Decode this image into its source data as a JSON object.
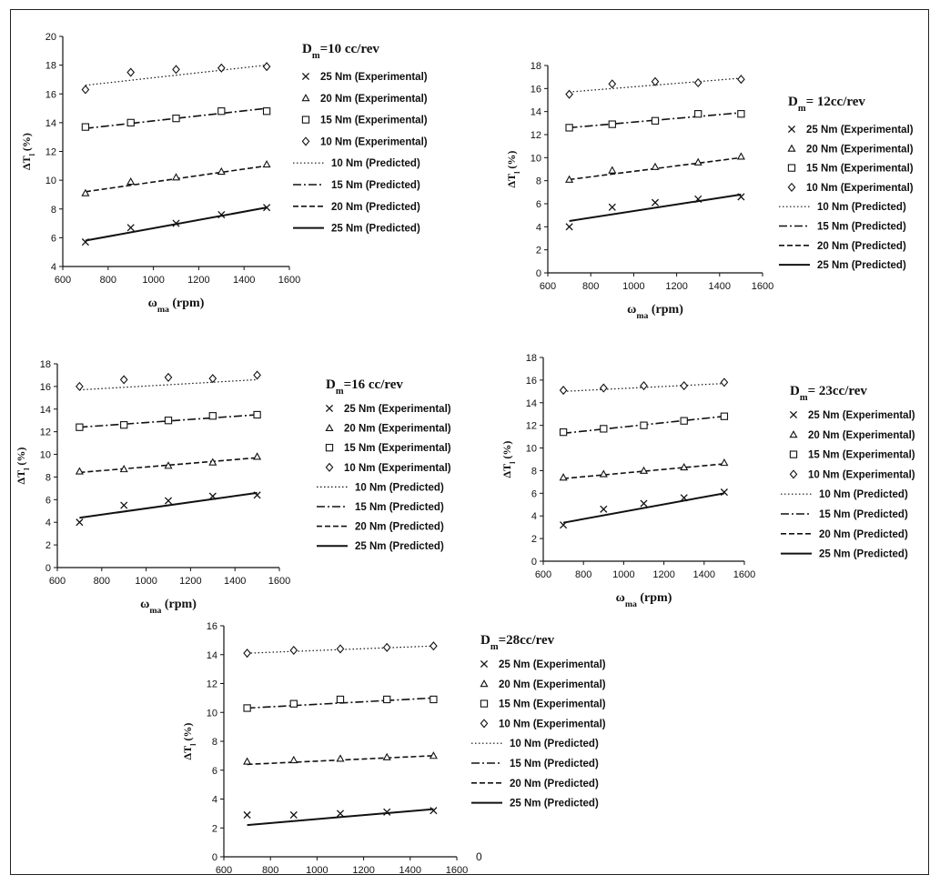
{
  "chart_data": [
    {
      "type": "line",
      "title": "D",
      "title_sub": "m",
      "title_rest": "=10 cc/rev",
      "ylabel": "ΔT",
      "ylabel_sub": "l",
      "ylabel_rest": " (%)",
      "xlabel": "ω",
      "xlabel_sub": "ma",
      "xlabel_rest": " (rpm)",
      "xlim": [
        600,
        1600
      ],
      "ylim": [
        4,
        20
      ],
      "xticks": [
        600,
        800,
        1000,
        1200,
        1400,
        1600
      ],
      "yticks": [
        4,
        6,
        8,
        10,
        12,
        14,
        16,
        18,
        20
      ],
      "x": [
        700,
        900,
        1100,
        1300,
        1500
      ],
      "experimental": [
        {
          "name": "25 Nm (Experimental)",
          "marker": "x",
          "values": [
            5.7,
            6.7,
            7.0,
            7.6,
            8.1
          ]
        },
        {
          "name": "20 Nm (Experimental)",
          "marker": "triangle",
          "values": [
            9.1,
            9.9,
            10.2,
            10.6,
            11.1
          ]
        },
        {
          "name": "15 Nm (Experimental)",
          "marker": "square",
          "values": [
            13.7,
            14.0,
            14.3,
            14.8,
            14.8
          ]
        },
        {
          "name": "10 Nm (Experimental)",
          "marker": "diamond",
          "values": [
            16.3,
            17.5,
            17.7,
            17.8,
            17.9
          ]
        }
      ],
      "predicted": [
        {
          "name": "10 Nm (Predicted)",
          "style": "dotted",
          "from": 16.6,
          "to": 18.0
        },
        {
          "name": "15 Nm (Predicted)",
          "style": "dashdot",
          "from": 13.6,
          "to": 15.0
        },
        {
          "name": "20 Nm (Predicted)",
          "style": "dashed",
          "from": 9.2,
          "to": 11.0
        },
        {
          "name": "25 Nm (Predicted)",
          "style": "solid",
          "from": 5.8,
          "to": 8.1
        }
      ]
    },
    {
      "type": "line",
      "title": "D",
      "title_sub": "m",
      "title_rest": "= 12cc/rev",
      "ylabel": "ΔT",
      "ylabel_sub": "l",
      "ylabel_rest": " (%)",
      "xlabel": "ω",
      "xlabel_sub": "ma",
      "xlabel_rest": " (rpm)",
      "xlim": [
        600,
        1600
      ],
      "ylim": [
        0,
        18
      ],
      "xticks": [
        600,
        800,
        1000,
        1200,
        1400,
        1600
      ],
      "yticks": [
        0,
        2,
        4,
        6,
        8,
        10,
        12,
        14,
        16,
        18
      ],
      "x": [
        700,
        900,
        1100,
        1300,
        1500
      ],
      "experimental": [
        {
          "name": "25 Nm (Experimental)",
          "marker": "x",
          "values": [
            4.0,
            5.7,
            6.1,
            6.4,
            6.6
          ]
        },
        {
          "name": "20 Nm  (Experimental)",
          "marker": "triangle",
          "values": [
            8.1,
            8.9,
            9.2,
            9.6,
            10.1
          ]
        },
        {
          "name": "15 Nm  (Experimental)",
          "marker": "square",
          "values": [
            12.6,
            12.9,
            13.2,
            13.8,
            13.8
          ]
        },
        {
          "name": "10 Nm (Experimental)",
          "marker": "diamond",
          "values": [
            15.5,
            16.4,
            16.6,
            16.5,
            16.8
          ]
        }
      ],
      "predicted": [
        {
          "name": "10 Nm (Predicted)",
          "style": "dotted",
          "from": 15.7,
          "to": 16.9
        },
        {
          "name": "15 Nm (Predicted)",
          "style": "dashdot",
          "from": 12.6,
          "to": 13.9
        },
        {
          "name": "20 Nm (Predicted)",
          "style": "dashed",
          "from": 8.1,
          "to": 10.0
        },
        {
          "name": "25 Nm (Predicted)",
          "style": "solid",
          "from": 4.5,
          "to": 6.8
        }
      ]
    },
    {
      "type": "line",
      "title": "D",
      "title_sub": "m",
      "title_rest": "=16 cc/rev",
      "ylabel": "ΔT",
      "ylabel_sub": "l",
      "ylabel_rest": " (%)",
      "xlabel": "ω",
      "xlabel_sub": "ma",
      "xlabel_rest": " (rpm)",
      "xlim": [
        600,
        1600
      ],
      "ylim": [
        0,
        18
      ],
      "xticks": [
        600,
        800,
        1000,
        1200,
        1400,
        1600
      ],
      "yticks": [
        0,
        2,
        4,
        6,
        8,
        10,
        12,
        14,
        16,
        18
      ],
      "x": [
        700,
        900,
        1100,
        1300,
        1500
      ],
      "experimental": [
        {
          "name": "25 Nm (Experimental)",
          "marker": "x",
          "values": [
            4.0,
            5.5,
            5.9,
            6.3,
            6.4
          ]
        },
        {
          "name": "20 Nm  (Experimental)",
          "marker": "triangle",
          "values": [
            8.5,
            8.7,
            9.0,
            9.3,
            9.8
          ]
        },
        {
          "name": "15 Nm  (Experimental)",
          "marker": "square",
          "values": [
            12.4,
            12.6,
            13.0,
            13.4,
            13.5
          ]
        },
        {
          "name": "10 Nm (Experimental)",
          "marker": "diamond",
          "values": [
            16.0,
            16.6,
            16.8,
            16.7,
            17.0
          ]
        }
      ],
      "predicted": [
        {
          "name": "10 Nm (Predicted)",
          "style": "dotted",
          "from": 15.7,
          "to": 16.6
        },
        {
          "name": "15 Nm (Predicted)",
          "style": "dashdot",
          "from": 12.4,
          "to": 13.5
        },
        {
          "name": "20 Nm (Predicted)",
          "style": "dashed",
          "from": 8.4,
          "to": 9.7
        },
        {
          "name": "25 Nm (Predicted)",
          "style": "solid",
          "from": 4.4,
          "to": 6.6
        }
      ]
    },
    {
      "type": "line",
      "title": "D",
      "title_sub": "m",
      "title_rest": "= 23cc/rev",
      "ylabel": "ΔT",
      "ylabel_sub": "l",
      "ylabel_rest": " (%)",
      "xlabel": "ω",
      "xlabel_sub": "ma",
      "xlabel_rest": " (rpm)",
      "xlim": [
        600,
        1600
      ],
      "ylim": [
        0,
        18
      ],
      "xticks": [
        600,
        800,
        1000,
        1200,
        1400,
        1600
      ],
      "yticks": [
        0,
        2,
        4,
        6,
        8,
        10,
        12,
        14,
        16,
        18
      ],
      "x": [
        700,
        900,
        1100,
        1300,
        1500
      ],
      "experimental": [
        {
          "name": "25 Nm (Experimental)",
          "marker": "x",
          "values": [
            3.2,
            4.6,
            5.1,
            5.6,
            6.1
          ]
        },
        {
          "name": "20 Nm  (Experimental)",
          "marker": "triangle",
          "values": [
            7.4,
            7.7,
            8.0,
            8.3,
            8.7
          ]
        },
        {
          "name": "15 Nm  (Experimental)",
          "marker": "square",
          "values": [
            11.4,
            11.7,
            12.0,
            12.4,
            12.8
          ]
        },
        {
          "name": "10 Nm (Experimental)",
          "marker": "diamond",
          "values": [
            15.1,
            15.3,
            15.5,
            15.5,
            15.8
          ]
        }
      ],
      "predicted": [
        {
          "name": "10 Nm (Predicted)",
          "style": "dotted",
          "from": 15.0,
          "to": 15.7
        },
        {
          "name": "15 Nm (Predicted)",
          "style": "dashdot",
          "from": 11.3,
          "to": 12.8
        },
        {
          "name": "20 Nm (Predicted)",
          "style": "dashed",
          "from": 7.3,
          "to": 8.6
        },
        {
          "name": "25 Nm (Predicted)",
          "style": "solid",
          "from": 3.4,
          "to": 6.0
        }
      ]
    },
    {
      "type": "line",
      "title": "D",
      "title_sub": "m",
      "title_rest": "=28cc/rev",
      "ylabel": "ΔT",
      "ylabel_sub": "l",
      "ylabel_rest": " (%)",
      "xlabel": "ω",
      "xlabel_sub": "ma",
      "xlabel_rest": " (rpm)",
      "xlim": [
        600,
        1600
      ],
      "ylim": [
        0,
        16
      ],
      "xticks": [
        600,
        800,
        1000,
        1200,
        1400,
        1600
      ],
      "yticks": [
        0,
        2,
        4,
        6,
        8,
        10,
        12,
        14,
        16
      ],
      "x": [
        700,
        900,
        1100,
        1300,
        1500
      ],
      "experimental": [
        {
          "name": "25 Nm (Experimental)",
          "marker": "x",
          "values": [
            2.9,
            2.9,
            3.0,
            3.1,
            3.2
          ]
        },
        {
          "name": "20 Nm  (Experimental)",
          "marker": "triangle",
          "values": [
            6.6,
            6.7,
            6.8,
            6.9,
            7.0
          ]
        },
        {
          "name": "15 Nm  (Experimental)",
          "marker": "square",
          "values": [
            10.3,
            10.6,
            10.9,
            10.9,
            10.9
          ]
        },
        {
          "name": "10 Nm (Experimental)",
          "marker": "diamond",
          "values": [
            14.1,
            14.3,
            14.4,
            14.5,
            14.6
          ]
        }
      ],
      "predicted": [
        {
          "name": "10 Nm (Predicted)",
          "style": "dotted",
          "from": 14.1,
          "to": 14.6
        },
        {
          "name": "15 Nm (Predicted)",
          "style": "dashdot",
          "from": 10.3,
          "to": 11.0
        },
        {
          "name": "20 Nm (Predicted)",
          "style": "dashed",
          "from": 6.4,
          "to": 7.0
        },
        {
          "name": "25 Nm (Predicted)",
          "style": "solid",
          "from": 2.2,
          "to": 3.3
        }
      ]
    }
  ],
  "stray_label": "0"
}
